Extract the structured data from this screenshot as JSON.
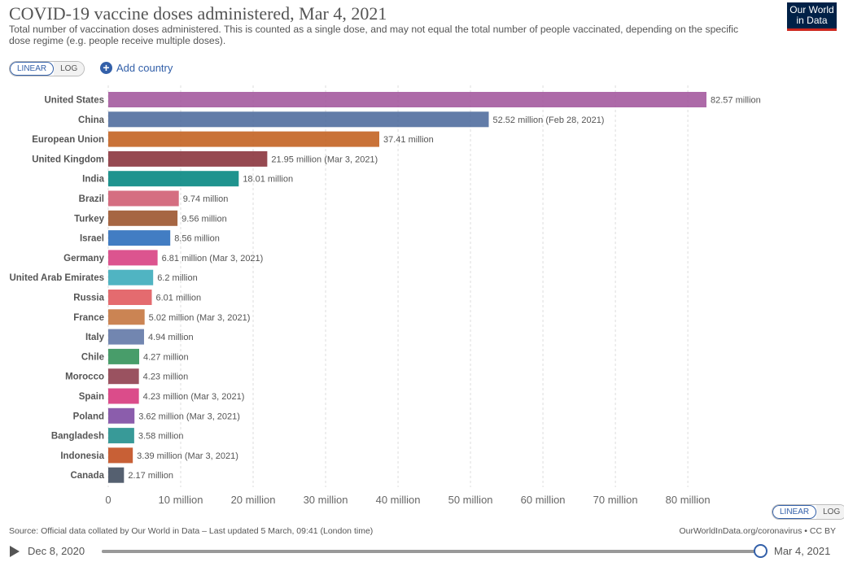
{
  "header": {
    "title": "COVID-19 vaccine doses administered, Mar 4, 2021",
    "subtitle": "Total number of vaccination doses administered. This is counted as a single dose, and may not equal the total number of people vaccinated, depending on the specific dose regime (e.g. people receive multiple doses).",
    "logo_line1": "Our World",
    "logo_line2": "in Data"
  },
  "controls": {
    "linear_label": "LINEAR",
    "log_label": "LOG",
    "add_country_label": "Add country",
    "scale_selected": "linear"
  },
  "chart_data": {
    "type": "bar",
    "orientation": "horizontal",
    "categories": [
      "United States",
      "China",
      "European Union",
      "United Kingdom",
      "India",
      "Brazil",
      "Turkey",
      "Israel",
      "Germany",
      "United Arab Emirates",
      "Russia",
      "France",
      "Italy",
      "Chile",
      "Morocco",
      "Spain",
      "Poland",
      "Bangladesh",
      "Indonesia",
      "Canada"
    ],
    "values": [
      82.57,
      52.52,
      37.41,
      21.95,
      18.01,
      9.74,
      9.56,
      8.56,
      6.81,
      6.2,
      6.01,
      5.02,
      4.94,
      4.27,
      4.23,
      4.23,
      3.62,
      3.58,
      3.39,
      2.17
    ],
    "value_labels": [
      "82.57 million",
      "52.52 million (Feb 28, 2021)",
      "37.41 million",
      "21.95 million (Mar 3, 2021)",
      "18.01 million",
      "9.74 million",
      "9.56 million",
      "8.56 million",
      "6.81 million (Mar 3, 2021)",
      "6.2 million",
      "6.01 million",
      "5.02 million (Mar 3, 2021)",
      "4.94 million",
      "4.27 million",
      "4.23 million",
      "4.23 million (Mar 3, 2021)",
      "3.62 million (Mar 3, 2021)",
      "3.58 million",
      "3.39 million (Mar 3, 2021)",
      "2.17 million"
    ],
    "colors": [
      "#a2559c",
      "#4c6a9c",
      "#c15f1d",
      "#883039",
      "#00847e",
      "#cf5a6f",
      "#9a5129",
      "#286bbb",
      "#d73c80",
      "#38aaba",
      "#e0565b",
      "#c4733b",
      "#5f75a5",
      "#2f8f55",
      "#8c3a4a",
      "#d6337a",
      "#7b47a0",
      "#1d8c8a",
      "#c04a1a",
      "#3e4a5c"
    ],
    "xticks": [
      0,
      10,
      20,
      30,
      40,
      50,
      60,
      70,
      80
    ],
    "xtick_labels": [
      "0",
      "10 million",
      "20 million",
      "30 million",
      "40 million",
      "50 million",
      "60 million",
      "70 million",
      "80 million"
    ],
    "xlim": [
      0,
      82.57
    ],
    "unit": "million",
    "grid": "vertical"
  },
  "footer": {
    "source": "Source: Official data collated by Our World in Data – Last updated 5 March, 09:41 (London time)",
    "credit": "OurWorldInData.org/coronavirus • CC BY"
  },
  "timeline": {
    "start_label": "Dec 8, 2020",
    "end_label": "Mar 4, 2021",
    "position": 1.0
  }
}
